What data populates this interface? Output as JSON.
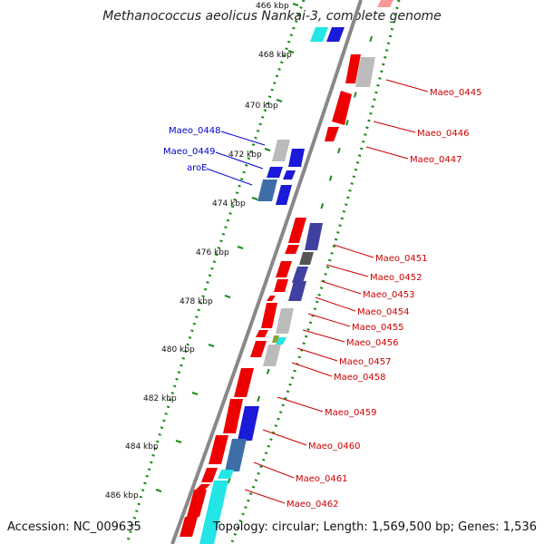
{
  "title": "Methanococcus aeolicus Nankai-3, complete genome",
  "accession": "Accession: NC_009635",
  "summary": "Topology: circular; Length: 1,569,500 bp; Genes: 1,536",
  "ticks": [
    "466 kbp",
    "468 kbp",
    "470 kbp",
    "472 kbp",
    "474 kbp",
    "476 kbp",
    "478 kbp",
    "480 kbp",
    "482 kbp",
    "484 kbp",
    "486 kbp"
  ],
  "left_labels": [
    "Maeo_0448",
    "Maeo_0449",
    "aroE"
  ],
  "right_labels": [
    "Maeo_0445",
    "Maeo_0446",
    "Maeo_0447",
    "Maeo_0451",
    "Maeo_0452",
    "Maeo_0453",
    "Maeo_0454",
    "Maeo_0455",
    "Maeo_0456",
    "Maeo_0457",
    "Maeo_0458",
    "Maeo_0459",
    "Maeo_0460",
    "Maeo_0461",
    "Maeo_0462"
  ],
  "colors": {
    "forward_gene": "#ee0000",
    "left_label": "#0000cc",
    "right_label": "#cc0000",
    "backbone": "#808080",
    "tick_dots": "#1a8a1a"
  }
}
